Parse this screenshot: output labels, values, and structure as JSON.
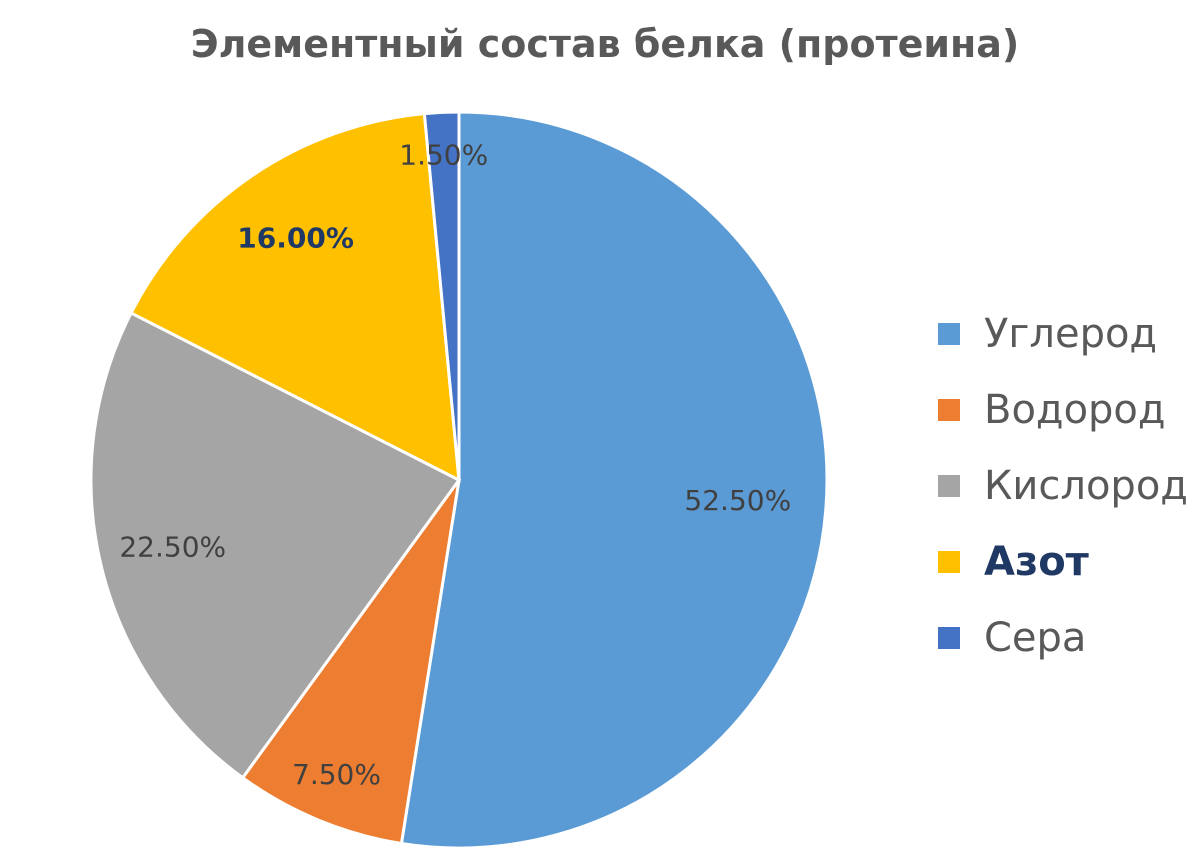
{
  "chart_data": {
    "type": "pie",
    "title": "Элементный состав белка (протеина)",
    "categories": [
      "Углерод",
      "Водород",
      "Кислород",
      "Азот",
      "Сера"
    ],
    "values": [
      52.5,
      7.5,
      22.5,
      16.0,
      1.5
    ],
    "data_labels": [
      "52.50%",
      "7.50%",
      "22.50%",
      "16.00%",
      "1.50%"
    ],
    "colors": [
      "#5b9bd5",
      "#ed7d31",
      "#a5a5a5",
      "#ffc000",
      "#4472c4"
    ],
    "emphasized_category": "Азот",
    "legend_position": "right",
    "start_angle": "12 o'clock",
    "direction": "clockwise"
  }
}
